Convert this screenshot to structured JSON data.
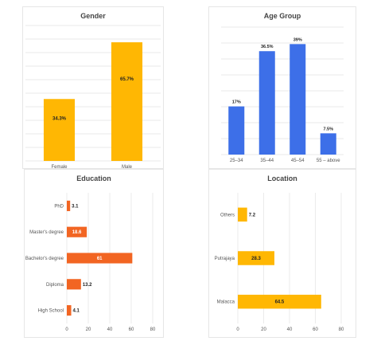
{
  "colors": {
    "orange": "#FFB703",
    "blue": "#3D6FE8",
    "red": "#F26522",
    "grid": "#E3E3E3",
    "panel_border": "#E6E6E6"
  },
  "chart_data": [
    {
      "id": "gender",
      "type": "bar",
      "title": "Gender",
      "categories": [
        "Female",
        "Male"
      ],
      "values": [
        34.3,
        65.7
      ],
      "data_labels": [
        "34.3%",
        "65.7%"
      ],
      "ylim": [
        0,
        75
      ],
      "grid": true,
      "color": "#FFB703"
    },
    {
      "id": "age",
      "type": "bar",
      "title": "Age Group",
      "categories": [
        "25–34",
        "35–44",
        "45–54",
        "55 – above"
      ],
      "values": [
        17,
        36.5,
        39,
        7.5
      ],
      "data_labels": [
        "17%",
        "36.5%",
        "39%",
        "7.5%"
      ],
      "ylim": [
        0,
        45
      ],
      "grid": true,
      "color": "#3D6FE8"
    },
    {
      "id": "education",
      "type": "bar",
      "orientation": "horizontal",
      "title": "Education",
      "categories": [
        "PhD",
        "Master's degree",
        "Bachelor's degree",
        "Diploma",
        "High School"
      ],
      "values": [
        3.1,
        18.6,
        61,
        13.2,
        4.1
      ],
      "data_labels": [
        "3.1",
        "18.6",
        "61",
        "13.2",
        "4.1"
      ],
      "xlim": [
        0,
        80
      ],
      "xticks": [
        "0",
        "20",
        "40",
        "60",
        "80"
      ],
      "grid": true,
      "color": "#F26522"
    },
    {
      "id": "location",
      "type": "bar",
      "orientation": "horizontal",
      "title": "Location",
      "categories": [
        "Others",
        "Putrajaya",
        "Malacca"
      ],
      "values": [
        7.2,
        28.3,
        64.5
      ],
      "data_labels": [
        "7.2",
        "28.3",
        "64.5"
      ],
      "xlim": [
        0,
        80
      ],
      "xticks": [
        "0",
        "20",
        "40",
        "60",
        "80"
      ],
      "grid": true,
      "color": "#FFB703"
    }
  ]
}
